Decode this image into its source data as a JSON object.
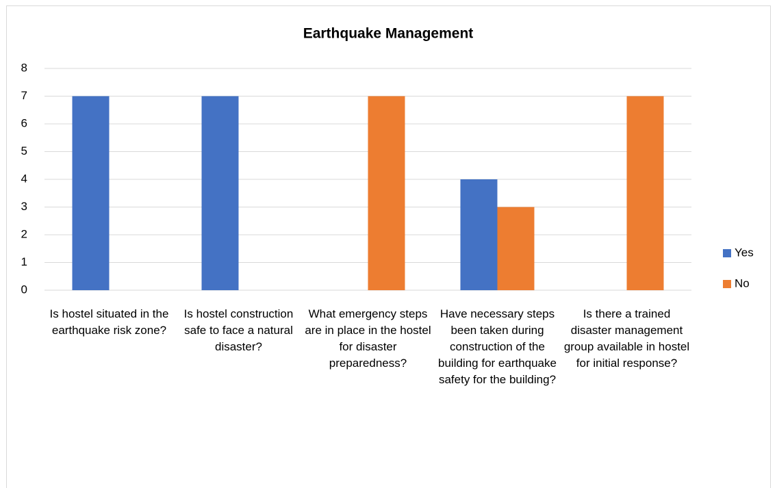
{
  "chart_data": {
    "type": "bar",
    "title": "Earthquake Management",
    "categories": [
      "Is hostel situated in the earthquake risk zone?",
      "Is hostel construction safe to face a natural disaster?",
      "What emergency steps are in place in the hostel for disaster preparedness?",
      "Have necessary steps been taken during construction of the building for earthquake safety for the building?",
      "Is there a trained disaster management group available in hostel for initial response?"
    ],
    "series": [
      {
        "name": "Yes",
        "color": "#4472c4",
        "values": [
          7,
          7,
          0,
          4,
          0
        ]
      },
      {
        "name": "No",
        "color": "#ed7d31",
        "values": [
          0,
          0,
          7,
          3,
          7
        ]
      }
    ],
    "ylim": [
      0,
      8
    ],
    "yticks": [
      0,
      1,
      2,
      3,
      4,
      5,
      6,
      7,
      8
    ],
    "grid": true,
    "legend": "right"
  }
}
